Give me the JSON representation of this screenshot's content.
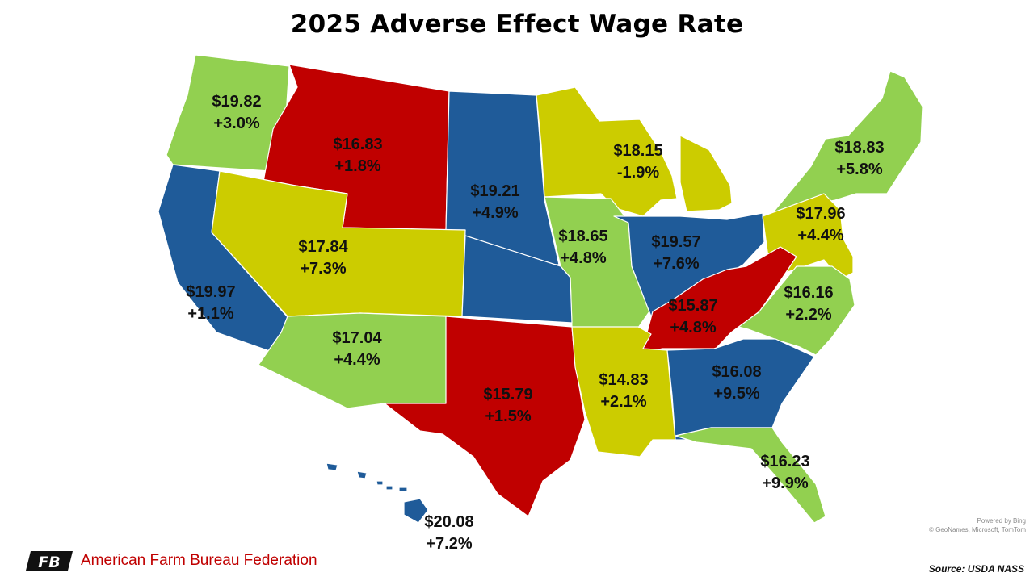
{
  "title": "2025 Adverse Effect Wage Rate",
  "colors": {
    "green": "#92d050",
    "blue": "#1f5b99",
    "red": "#c00000",
    "yellow": "#cccc00",
    "border": "#ffffff"
  },
  "regions": [
    {
      "id": "pacific-northwest",
      "states": [
        "WA",
        "OR"
      ],
      "color": "green",
      "wage": "$19.82",
      "change": "+3.0%"
    },
    {
      "id": "mountain-north",
      "states": [
        "ID",
        "MT",
        "WY"
      ],
      "color": "red",
      "wage": "$16.83",
      "change": "+1.8%"
    },
    {
      "id": "northern-plains",
      "states": [
        "ND",
        "SD",
        "NE"
      ],
      "color": "blue",
      "wage": "$19.21",
      "change": "+4.9%"
    },
    {
      "id": "lake",
      "states": [
        "MN",
        "WI",
        "MI"
      ],
      "color": "yellow",
      "wage": "$18.15",
      "change": "-1.9%"
    },
    {
      "id": "northeast-i",
      "states": [
        "NY",
        "VT",
        "NH",
        "ME",
        "MA",
        "CT",
        "RI"
      ],
      "color": "green",
      "wage": "$18.83",
      "change": "+5.8%"
    },
    {
      "id": "california",
      "states": [
        "CA"
      ],
      "color": "blue",
      "wage": "$19.97",
      "change": "+1.1%"
    },
    {
      "id": "mountain-middle",
      "states": [
        "NV",
        "UT",
        "CO"
      ],
      "color": "yellow",
      "wage": "$17.84",
      "change": "+7.3%"
    },
    {
      "id": "corn-belt-ii",
      "states": [
        "IA",
        "MO"
      ],
      "color": "green",
      "wage": "$18.65",
      "change": "+4.8%"
    },
    {
      "id": "corn-belt-i",
      "states": [
        "IL",
        "IN",
        "OH"
      ],
      "color": "blue",
      "wage": "$19.57",
      "change": "+7.6%"
    },
    {
      "id": "northeast-ii",
      "states": [
        "PA",
        "NJ",
        "DE",
        "MD"
      ],
      "color": "yellow",
      "wage": "$17.96",
      "change": "+4.4%"
    },
    {
      "id": "appalachian-i",
      "states": [
        "VA",
        "NC"
      ],
      "color": "green",
      "wage": "$16.16",
      "change": "+2.2%"
    },
    {
      "id": "appalachian-ii",
      "states": [
        "KY",
        "TN",
        "WV"
      ],
      "color": "red",
      "wage": "$15.87",
      "change": "+4.8%"
    },
    {
      "id": "mountain-south",
      "states": [
        "AZ",
        "NM"
      ],
      "color": "green",
      "wage": "$17.04",
      "change": "+4.4%"
    },
    {
      "id": "southern-plains",
      "states": [
        "OK",
        "TX"
      ],
      "color": "red",
      "wage": "$15.79",
      "change": "+1.5%"
    },
    {
      "id": "delta",
      "states": [
        "AR",
        "LA",
        "MS"
      ],
      "color": "yellow",
      "wage": "$14.83",
      "change": "+2.1%"
    },
    {
      "id": "southeast",
      "states": [
        "AL",
        "GA",
        "SC"
      ],
      "color": "blue",
      "wage": "$16.08",
      "change": "+9.5%"
    },
    {
      "id": "florida",
      "states": [
        "FL"
      ],
      "color": "green",
      "wage": "$16.23",
      "change": "+9.9%"
    },
    {
      "id": "hawaii",
      "states": [
        "HI"
      ],
      "color": "blue",
      "wage": "$20.08",
      "change": "+7.2%"
    },
    {
      "id": "kansas",
      "states": [
        "KS"
      ],
      "color": "blue",
      "wage": "",
      "change": ""
    }
  ],
  "credit": {
    "line1": "Powered by Bing",
    "line2": "© GeoNames, Microsoft, TomTom"
  },
  "footer": {
    "organization": "American Farm Bureau Federation",
    "logo_text": "FB",
    "source": "Source: USDA NASS"
  }
}
